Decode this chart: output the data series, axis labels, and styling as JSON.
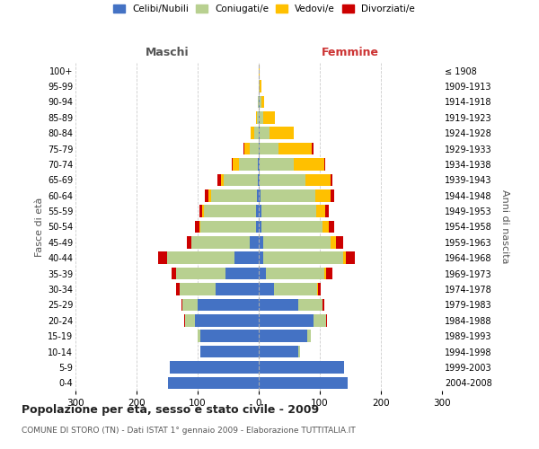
{
  "age_groups": [
    "0-4",
    "5-9",
    "10-14",
    "15-19",
    "20-24",
    "25-29",
    "30-34",
    "35-39",
    "40-44",
    "45-49",
    "50-54",
    "55-59",
    "60-64",
    "65-69",
    "70-74",
    "75-79",
    "80-84",
    "85-89",
    "90-94",
    "95-99",
    "100+"
  ],
  "birth_years": [
    "2004-2008",
    "1999-2003",
    "1994-1998",
    "1989-1993",
    "1984-1988",
    "1979-1983",
    "1974-1978",
    "1969-1973",
    "1964-1968",
    "1959-1963",
    "1954-1958",
    "1949-1953",
    "1944-1948",
    "1939-1943",
    "1934-1938",
    "1929-1933",
    "1924-1928",
    "1919-1923",
    "1914-1918",
    "1909-1913",
    "≤ 1908"
  ],
  "maschi": {
    "celibi": [
      148,
      145,
      95,
      95,
      105,
      100,
      70,
      55,
      40,
      15,
      5,
      4,
      3,
      2,
      2,
      0,
      0,
      0,
      0,
      0,
      0
    ],
    "coniugati": [
      0,
      0,
      0,
      5,
      15,
      25,
      60,
      80,
      110,
      95,
      90,
      85,
      75,
      55,
      30,
      15,
      8,
      3,
      1,
      0,
      0
    ],
    "vedovi": [
      0,
      0,
      0,
      0,
      0,
      0,
      0,
      0,
      0,
      0,
      2,
      3,
      5,
      5,
      10,
      8,
      5,
      2,
      0,
      0,
      0
    ],
    "divorziati": [
      0,
      0,
      0,
      0,
      2,
      2,
      5,
      8,
      15,
      8,
      8,
      5,
      5,
      5,
      2,
      2,
      0,
      0,
      0,
      0,
      0
    ]
  },
  "femmine": {
    "nubili": [
      145,
      140,
      65,
      80,
      90,
      65,
      25,
      12,
      8,
      8,
      5,
      4,
      3,
      2,
      2,
      2,
      2,
      2,
      1,
      0,
      0
    ],
    "coniugate": [
      0,
      0,
      2,
      5,
      20,
      40,
      70,
      95,
      130,
      110,
      100,
      90,
      90,
      75,
      55,
      30,
      15,
      5,
      3,
      2,
      0
    ],
    "vedove": [
      0,
      0,
      0,
      0,
      0,
      0,
      2,
      3,
      5,
      8,
      10,
      15,
      25,
      40,
      50,
      55,
      40,
      20,
      5,
      2,
      1
    ],
    "divorziate": [
      0,
      0,
      0,
      0,
      2,
      3,
      5,
      10,
      15,
      12,
      8,
      5,
      5,
      3,
      2,
      2,
      0,
      0,
      0,
      0,
      0
    ]
  },
  "colors": {
    "celibi": "#4472c4",
    "coniugati": "#b8d090",
    "vedovi": "#ffc000",
    "divorziati": "#cc0000"
  },
  "legend_labels": [
    "Celibi/Nubili",
    "Coniugati/e",
    "Vedovi/e",
    "Divorziati/e"
  ],
  "title": "Popolazione per età, sesso e stato civile - 2009",
  "subtitle": "COMUNE DI STORO (TN) - Dati ISTAT 1° gennaio 2009 - Elaborazione TUTTITALIA.IT",
  "ylabel_left": "Fasce di età",
  "ylabel_right": "Anni di nascita",
  "label_maschi": "Maschi",
  "label_femmine": "Femmine",
  "xlim": 300,
  "background_color": "#ffffff"
}
